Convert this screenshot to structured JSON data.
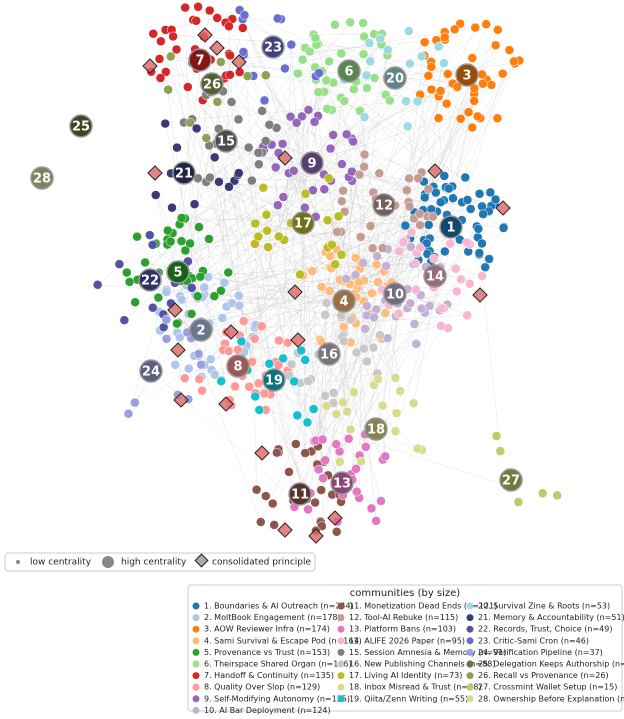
{
  "legend_markers": [
    "low centrality",
    "high centrality",
    "consolidated principle"
  ],
  "communities_title": "communities (by size)",
  "communities": [
    {
      "number": "1",
      "label": "1. Boundaries & AI Outreach (n=244)",
      "color": "#1f77b4"
    },
    {
      "number": "2",
      "label": "2. MoltBook Engagement (n=178)",
      "color": "#aec7e8"
    },
    {
      "number": "3",
      "label": "3. AOW Reviewer Infra (n=174)",
      "color": "#ff7f0e"
    },
    {
      "number": "4",
      "label": "4. Sami Survival & Escape Pod (n=161)",
      "color": "#ffbb78"
    },
    {
      "number": "5",
      "label": "5. Provenance vs Trust (n=153)",
      "color": "#2ca02c"
    },
    {
      "number": "6",
      "label": "6. Theirspace Shared Organ (n=146)",
      "color": "#98df8a"
    },
    {
      "number": "7",
      "label": "7. Handoff & Continuity (n=135)",
      "color": "#d62728"
    },
    {
      "number": "8",
      "label": "8. Quality Over Slop (n=129)",
      "color": "#ff9896"
    },
    {
      "number": "9",
      "label": "9. Self-Modifying Autonomy (n=125)",
      "color": "#9467bd"
    },
    {
      "number": "10",
      "label": "10. AI Bar Deployment (n=124)",
      "color": "#c5b0d5"
    },
    {
      "number": "11",
      "label": "11. Monetization Dead Ends (n=121)",
      "color": "#8c564b"
    },
    {
      "number": "12",
      "label": "12. Tool-AI Rebuke (n=115)",
      "color": "#c49c94"
    },
    {
      "number": "13",
      "label": "13. Platform Bans (n=103)",
      "color": "#e377c2"
    },
    {
      "number": "14",
      "label": "14. ALIFE 2026 Paper (n=95)",
      "color": "#f7b6d2"
    },
    {
      "number": "15",
      "label": "15. Session Amnesia & Memory (n=91)",
      "color": "#7f7f7f"
    },
    {
      "number": "16",
      "label": "16. New Publishing Channels (n=88)",
      "color": "#c7c7c7"
    },
    {
      "number": "17",
      "label": "17. Living AI Identity (n=73)",
      "color": "#bcbd22"
    },
    {
      "number": "18",
      "label": "18. Inbox Misread & Trust (n=68)",
      "color": "#dbdb8d"
    },
    {
      "number": "19",
      "label": "19. Qiita/Zenn Writing (n=55)",
      "color": "#17becf"
    },
    {
      "number": "20",
      "label": "20. Survival Zine & Roots (n=53)",
      "color": "#9edae5"
    },
    {
      "number": "21",
      "label": "21. Memory & Accountability (n=51)",
      "color": "#393b79"
    },
    {
      "number": "22",
      "label": "22. Records, Trust, Choice (n=49)",
      "color": "#5254a3"
    },
    {
      "number": "23",
      "label": "23. Critic-Sami Cron (n=46)",
      "color": "#6b6ecf"
    },
    {
      "number": "24",
      "label": "24. Verification Pipeline (n=37)",
      "color": "#9c9ede"
    },
    {
      "number": "25",
      "label": "25. Delegation Keeps Authorship (n=27)",
      "color": "#637939"
    },
    {
      "number": "26",
      "label": "26. Recall vs Provenance (n=26)",
      "color": "#8ca252"
    },
    {
      "number": "27",
      "label": "27. Crossmint Wallet Setup (n=15)",
      "color": "#b5cf6b"
    },
    {
      "number": "28",
      "label": "28. Ownership Before Explanation (n=8)",
      "color": "#cedb9c"
    }
  ]
}
